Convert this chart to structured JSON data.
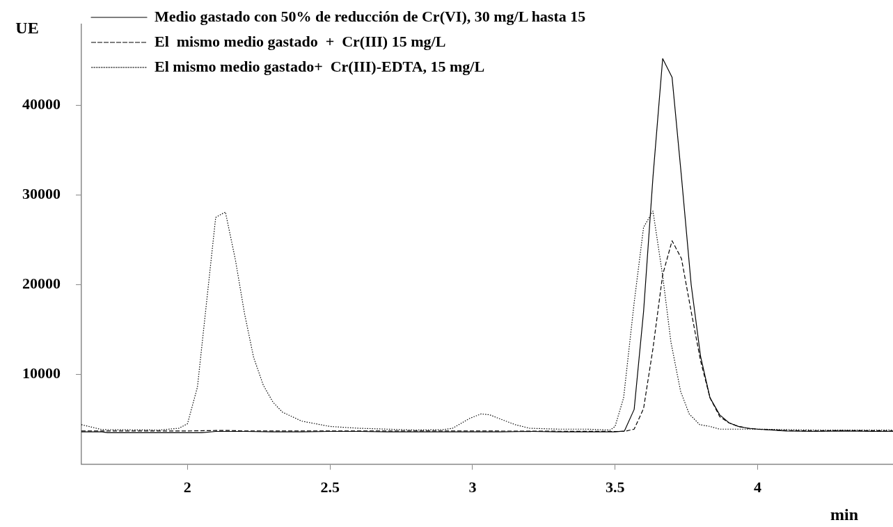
{
  "chart_data": {
    "type": "line",
    "xlabel": "min",
    "ylabel": "UE",
    "xlim": [
      1.628,
      4.475
    ],
    "ylim": [
      0,
      49000
    ],
    "xticks": [
      2,
      2.5,
      3,
      3.5,
      4
    ],
    "yticks": [
      10000,
      20000,
      30000,
      40000
    ],
    "grid": false,
    "legend": "top left",
    "marker": "none",
    "series": [
      {
        "name": "Medio gastado con 50% de reducción de Cr(VI), 30 mg/L hasta 15",
        "color": "#000000",
        "line_style": "solid",
        "x": [
          1.628,
          1.7,
          1.72,
          1.9,
          2.05,
          2.1,
          2.2,
          2.3,
          2.4,
          2.5,
          2.6,
          2.7,
          2.8,
          2.9,
          3.0,
          3.1,
          3.2,
          3.3,
          3.4,
          3.5,
          3.533,
          3.567,
          3.6,
          3.633,
          3.667,
          3.7,
          3.733,
          3.767,
          3.8,
          3.833,
          3.867,
          3.9,
          3.933,
          3.967,
          4.0,
          4.1,
          4.2,
          4.3,
          4.4,
          4.475
        ],
        "values": [
          3600,
          3600,
          3500,
          3500,
          3500,
          3650,
          3650,
          3600,
          3600,
          3650,
          3650,
          3600,
          3600,
          3600,
          3600,
          3600,
          3650,
          3600,
          3600,
          3600,
          3700,
          6100,
          17000,
          32000,
          45200,
          43100,
          32000,
          20000,
          12000,
          7400,
          5500,
          4600,
          4200,
          4000,
          3900,
          3700,
          3650,
          3700,
          3650,
          3650
        ]
      },
      {
        "name": "El  mismo medio gastado  +  Cr(III) 15 mg/L",
        "color": "#000000",
        "line_style": "dashed",
        "x": [
          1.628,
          1.8,
          2.0,
          2.1,
          2.15,
          2.2,
          2.5,
          3.0,
          3.5,
          3.533,
          3.567,
          3.6,
          3.633,
          3.667,
          3.7,
          3.733,
          3.767,
          3.8,
          3.833,
          3.867,
          3.9,
          3.933,
          3.967,
          4.0,
          4.1,
          4.2,
          4.3,
          4.475
        ],
        "values": [
          3700,
          3700,
          3700,
          3750,
          3750,
          3700,
          3700,
          3700,
          3650,
          3650,
          3900,
          6200,
          12900,
          21100,
          24900,
          22900,
          17000,
          11500,
          7400,
          5300,
          4600,
          4200,
          4000,
          3900,
          3750,
          3700,
          3750,
          3700
        ]
      },
      {
        "name": "El mismo medio gastado+  Cr(III)-EDTA, 15 mg/L",
        "color": "#000000",
        "line_style": "dotted",
        "x": [
          1.628,
          1.7,
          1.9,
          1.97,
          2.0,
          2.035,
          2.099,
          2.133,
          2.168,
          2.2,
          2.232,
          2.266,
          2.3,
          2.333,
          2.4,
          2.5,
          2.6,
          2.7,
          2.8,
          2.9,
          2.93,
          2.99,
          3.03,
          3.06,
          3.1,
          3.15,
          3.2,
          3.3,
          3.4,
          3.483,
          3.5,
          3.53,
          3.567,
          3.6,
          3.633,
          3.667,
          3.696,
          3.73,
          3.76,
          3.797,
          3.833,
          3.867,
          4.0,
          4.2,
          4.475
        ],
        "values": [
          4400,
          3850,
          3800,
          4000,
          4500,
          8600,
          27500,
          28100,
          22800,
          16800,
          11900,
          8800,
          6900,
          5800,
          4800,
          4200,
          4000,
          3900,
          3800,
          3850,
          4000,
          5100,
          5600,
          5500,
          5000,
          4400,
          4000,
          3900,
          3900,
          3800,
          4200,
          7400,
          18000,
          26400,
          28200,
          21000,
          13600,
          8100,
          5600,
          4400,
          4200,
          3900,
          3900,
          3800,
          3800
        ]
      }
    ]
  }
}
